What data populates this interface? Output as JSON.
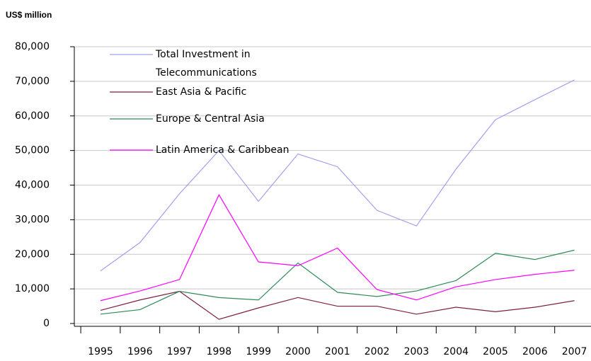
{
  "chart_data": {
    "type": "line",
    "y_label": "US$ million",
    "categories": [
      "1995",
      "1996",
      "1997",
      "1998",
      "1999",
      "2000",
      "2001",
      "2002",
      "2003",
      "2004",
      "2005",
      "2006",
      "2007"
    ],
    "series": [
      {
        "name": "Total Investment in Telecommunications",
        "color": "#a0a0f0",
        "values": [
          15200,
          23400,
          37500,
          50000,
          35300,
          49000,
          45300,
          32700,
          28200,
          44600,
          58900,
          64700,
          70400
        ]
      },
      {
        "name": "East Asia & Pacific",
        "color": "#7f1f3f",
        "values": [
          3800,
          6800,
          9300,
          1200,
          4500,
          7500,
          5000,
          5000,
          2700,
          4700,
          3400,
          4700,
          6600
        ]
      },
      {
        "name": "Europe & Central Asia",
        "color": "#2e8b57",
        "values": [
          2700,
          4000,
          9300,
          7500,
          6800,
          17500,
          9000,
          7800,
          9400,
          12400,
          20300,
          18500,
          21200
        ]
      },
      {
        "name": "Latin America & Caribbean",
        "color": "#ff00ff",
        "values": [
          6600,
          9400,
          12700,
          37200,
          17800,
          16700,
          21800,
          9800,
          6800,
          10600,
          12700,
          14200,
          15400
        ]
      }
    ],
    "ylim": [
      0,
      80000
    ],
    "yticks": [
      0,
      {
        "value": 10000,
        "label": "10,000"
      },
      {
        "value": 20000,
        "label": "20,000"
      },
      {
        "value": 30000,
        "label": "30,000"
      },
      {
        "value": 40000,
        "label": "40,000"
      },
      {
        "value": 50000,
        "label": "50,000"
      },
      {
        "value": 60000,
        "label": "60,000"
      },
      {
        "value": 70000,
        "label": "70,000"
      },
      {
        "value": 80000,
        "label": "80,000"
      }
    ],
    "grid": true
  }
}
